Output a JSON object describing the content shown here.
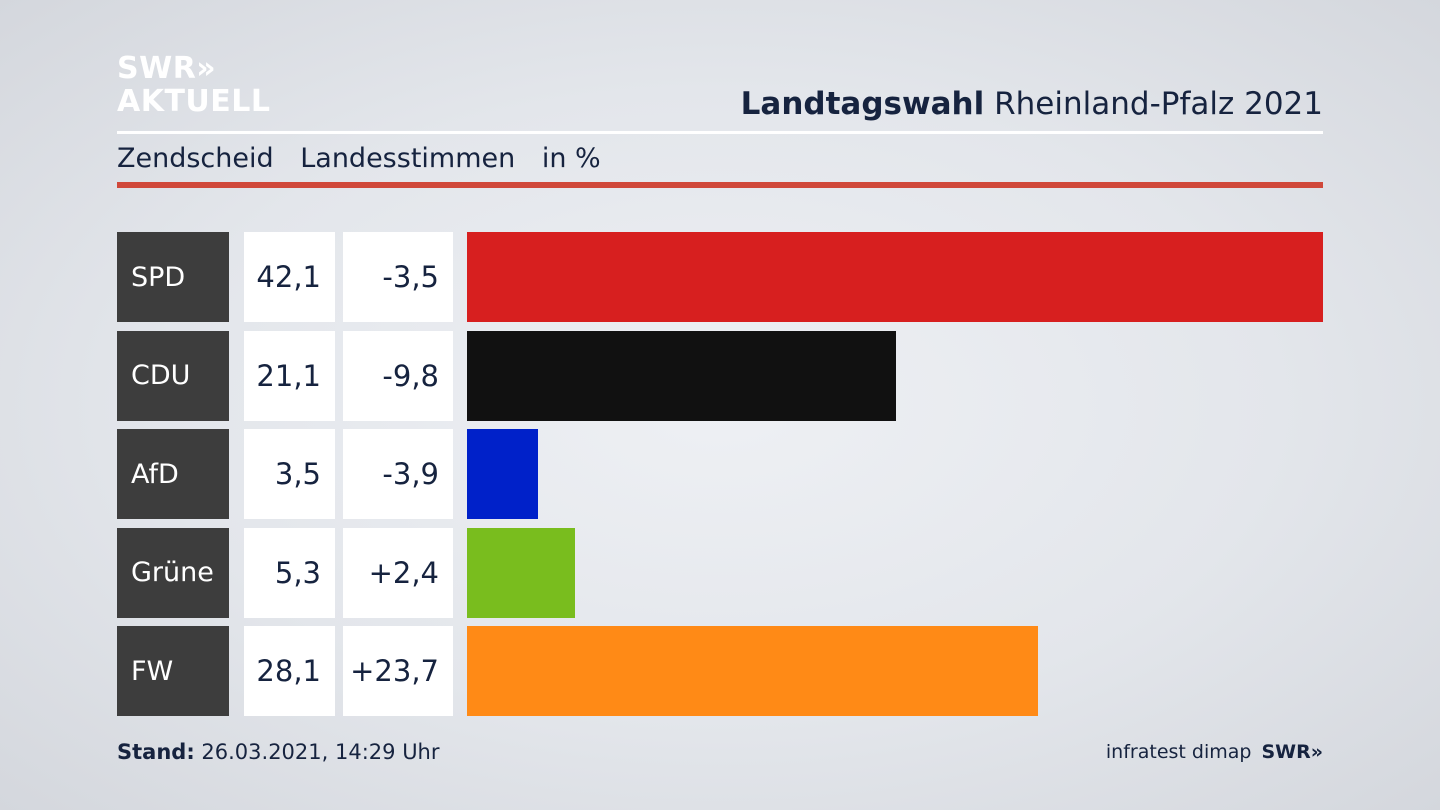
{
  "logo": {
    "line1": "SWR»",
    "line2": "AKTUELL"
  },
  "header": {
    "title_bold": "Landtagswahl",
    "title_rest": "Rheinland-Pfalz 2021"
  },
  "subheader": {
    "place": "Zendscheid",
    "vote_type": "Landesstimmen",
    "unit": "in %"
  },
  "footer": {
    "stand_label": "Stand:",
    "stand_value": "26.03.2021, 14:29 Uhr",
    "source": "infratest dimap",
    "brand": "SWR»"
  },
  "chart_data": {
    "type": "bar",
    "orientation": "horizontal",
    "categories": [
      "SPD",
      "CDU",
      "AfD",
      "Grüne",
      "FW"
    ],
    "values": [
      42.1,
      21.1,
      3.5,
      5.3,
      28.1
    ],
    "value_labels": [
      "42,1",
      "21,1",
      "3,5",
      "5,3",
      "28,1"
    ],
    "diff_labels": [
      "-3,5",
      "-9,8",
      "-3,9",
      "+2,4",
      "+23,7"
    ],
    "diffs": [
      -3.5,
      -9.8,
      -3.9,
      2.4,
      23.7
    ],
    "colors": [
      "#d71f1f",
      "#111111",
      "#0021c9",
      "#79bd1e",
      "#ff8a16"
    ],
    "xlim": [
      0,
      42.1
    ]
  }
}
